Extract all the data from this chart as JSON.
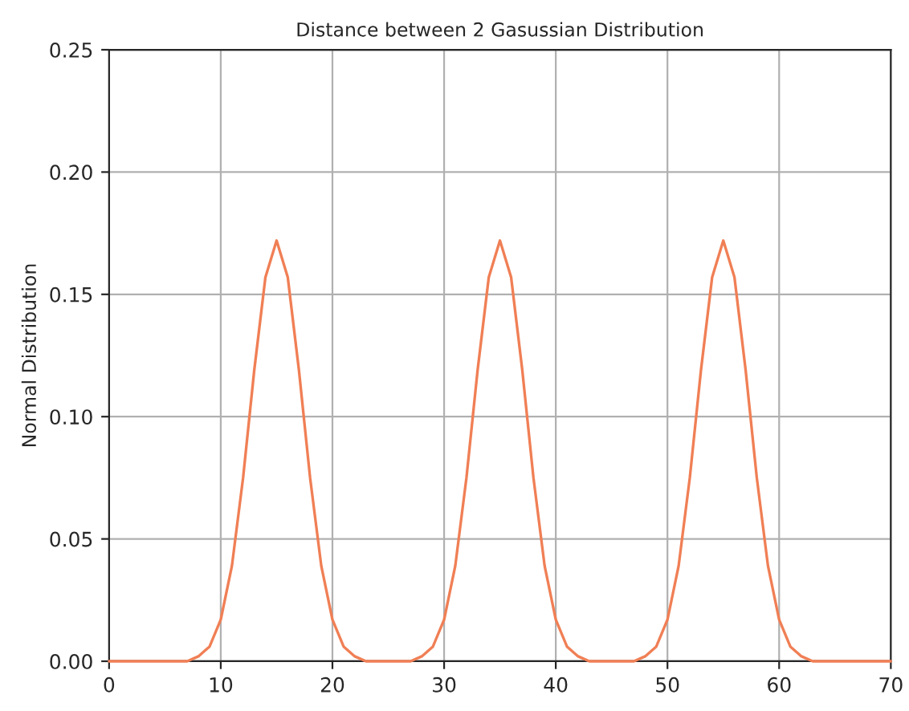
{
  "chart_data": {
    "type": "line",
    "title": "Distance between 2 Gasussian Distribution",
    "ylabel": "Normal Distribution",
    "x": [
      0,
      1,
      2,
      3,
      4,
      5,
      6,
      7,
      8,
      9,
      10,
      11,
      12,
      13,
      14,
      15,
      16,
      17,
      18,
      19,
      20,
      21,
      22,
      23,
      24,
      25,
      26,
      27,
      28,
      29,
      30,
      31,
      32,
      33,
      34,
      35,
      36,
      37,
      38,
      39,
      40,
      41,
      42,
      43,
      44,
      45,
      46,
      47,
      48,
      49,
      50,
      51,
      52,
      53,
      54,
      55,
      56,
      57,
      58,
      59,
      60,
      61,
      62,
      63,
      64,
      65,
      66,
      67,
      68,
      69,
      70
    ],
    "series": [
      {
        "color": "#f07f55",
        "values": [
          0,
          0,
          0,
          0,
          0,
          0,
          0,
          0,
          0.002,
          0.006,
          0.017,
          0.039,
          0.075,
          0.119,
          0.157,
          0.172,
          0.157,
          0.119,
          0.075,
          0.039,
          0.017,
          0.006,
          0.002,
          0,
          0,
          0,
          0,
          0,
          0.002,
          0.006,
          0.017,
          0.039,
          0.075,
          0.119,
          0.157,
          0.172,
          0.157,
          0.119,
          0.075,
          0.039,
          0.017,
          0.006,
          0.002,
          0,
          0,
          0,
          0,
          0,
          0.002,
          0.006,
          0.017,
          0.039,
          0.075,
          0.119,
          0.157,
          0.172,
          0.157,
          0.119,
          0.075,
          0.039,
          0.017,
          0.006,
          0.002,
          0,
          0,
          0,
          0,
          0,
          0,
          0,
          0
        ]
      }
    ],
    "xlim": [
      0,
      70
    ],
    "ylim": [
      0,
      0.25
    ],
    "xticks": [
      0,
      10,
      20,
      30,
      40,
      50,
      60,
      70
    ],
    "yticks": [
      {
        "value": 0,
        "label": "0.00"
      },
      {
        "value": 0.05,
        "label": "0.05"
      },
      {
        "value": 0.1,
        "label": "0.10"
      },
      {
        "value": 0.15,
        "label": "0.15"
      },
      {
        "value": 0.2,
        "label": "0.20"
      },
      {
        "value": 0.25,
        "label": "0.25"
      }
    ],
    "grid": true
  }
}
